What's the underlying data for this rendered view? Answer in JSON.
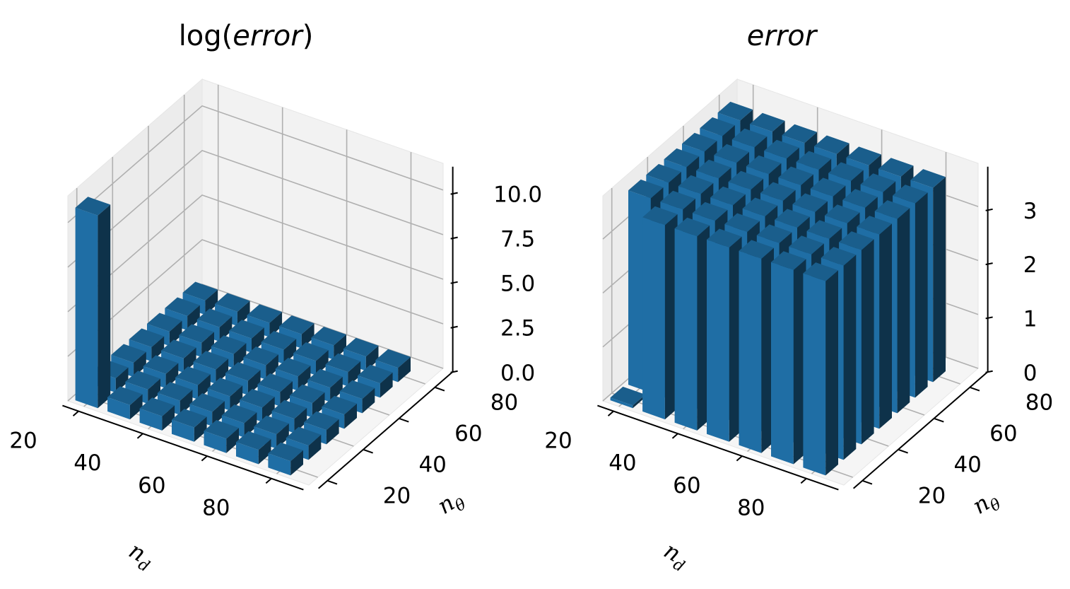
{
  "chart_data": [
    {
      "type": "bar3d",
      "title_prefix": "log(",
      "title_italic": "error",
      "title_suffix": ")",
      "xlabel": "n",
      "xlabel_sub": "d",
      "ylabel": "n",
      "ylabel_sub": "θ",
      "x": [
        20,
        30,
        40,
        50,
        60,
        70,
        80
      ],
      "y": [
        20,
        30,
        40,
        50,
        60,
        70,
        80
      ],
      "xticks": [
        "20",
        "40",
        "60",
        "80"
      ],
      "yticks": [
        "20",
        "40",
        "60",
        "80"
      ],
      "zticks": [
        "0.0",
        "2.5",
        "5.0",
        "7.5",
        "10.0"
      ],
      "zlim": [
        0,
        11.5
      ],
      "color": "#1f6ea5",
      "grid": true,
      "values": [
        [
          10.8,
          0.8,
          0.8,
          0.8,
          0.8,
          0.8,
          0.8
        ],
        [
          0.8,
          0.8,
          0.8,
          0.8,
          0.8,
          0.8,
          0.8
        ],
        [
          0.8,
          0.8,
          0.8,
          0.8,
          0.8,
          0.8,
          0.8
        ],
        [
          0.8,
          0.8,
          0.8,
          0.8,
          0.8,
          0.8,
          0.8
        ],
        [
          0.8,
          0.8,
          0.8,
          0.8,
          0.8,
          0.8,
          0.8
        ],
        [
          0.8,
          0.8,
          0.8,
          0.8,
          0.8,
          0.8,
          0.8
        ],
        [
          0.8,
          0.8,
          0.8,
          0.8,
          0.8,
          0.8,
          0.8
        ]
      ]
    },
    {
      "type": "bar3d",
      "title_prefix": "",
      "title_italic": "error",
      "title_suffix": "",
      "xlabel": "n",
      "xlabel_sub": "d",
      "ylabel": "n",
      "ylabel_sub": "θ",
      "x": [
        20,
        30,
        40,
        50,
        60,
        70,
        80
      ],
      "y": [
        20,
        30,
        40,
        50,
        60,
        70,
        80
      ],
      "xticks": [
        "20",
        "40",
        "60",
        "80"
      ],
      "yticks": [
        "20",
        "40",
        "60",
        "80"
      ],
      "zticks": [
        "0",
        "1",
        "2",
        "3"
      ],
      "zlim": [
        0,
        3.8
      ],
      "color": "#1f6ea5",
      "grid": true,
      "values": [
        [
          0.05,
          3.6,
          3.6,
          3.6,
          3.6,
          3.6,
          3.6
        ],
        [
          3.6,
          3.6,
          3.6,
          3.6,
          3.6,
          3.6,
          3.6
        ],
        [
          3.6,
          3.6,
          3.6,
          3.6,
          3.6,
          3.6,
          3.6
        ],
        [
          3.6,
          3.6,
          3.6,
          3.6,
          3.6,
          3.6,
          3.6
        ],
        [
          3.6,
          3.6,
          3.6,
          3.6,
          3.6,
          3.6,
          3.6
        ],
        [
          3.6,
          3.6,
          3.6,
          3.6,
          3.6,
          3.6,
          3.6
        ],
        [
          3.6,
          3.6,
          3.6,
          3.6,
          3.6,
          3.6,
          3.6
        ]
      ]
    }
  ]
}
